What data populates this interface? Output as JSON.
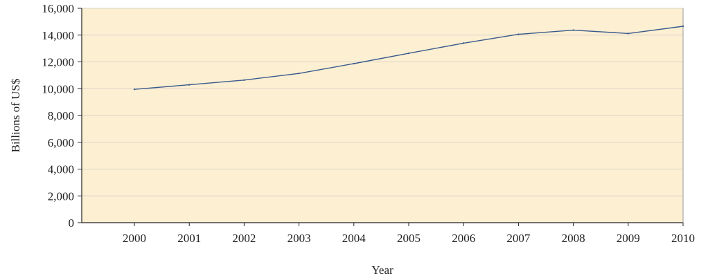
{
  "chart_data": {
    "type": "line",
    "title": "",
    "xlabel": "Year",
    "ylabel": "Billions of US$",
    "x": [
      "2000",
      "2001",
      "2002",
      "2003",
      "2004",
      "2005",
      "2006",
      "2007",
      "2008",
      "2009",
      "2010"
    ],
    "series": [
      {
        "values": [
          9950,
          10290,
          10640,
          11140,
          11870,
          12640,
          13400,
          14060,
          14370,
          14120,
          14660
        ]
      }
    ],
    "ylim": [
      0,
      16000
    ],
    "y_ticks": [
      0,
      2000,
      4000,
      6000,
      8000,
      10000,
      12000,
      14000,
      16000
    ],
    "y_tick_labels": [
      "0",
      "2,000",
      "4,000",
      "6,000",
      "8,000",
      "10,000",
      "12,000",
      "14,000",
      "16,000"
    ],
    "grid": true,
    "legend": "none",
    "colors": {
      "plot_background": "#FCEFD2",
      "line": "#3A5A8C",
      "gridline": "#D9D4C7",
      "axis": "#222222"
    }
  }
}
